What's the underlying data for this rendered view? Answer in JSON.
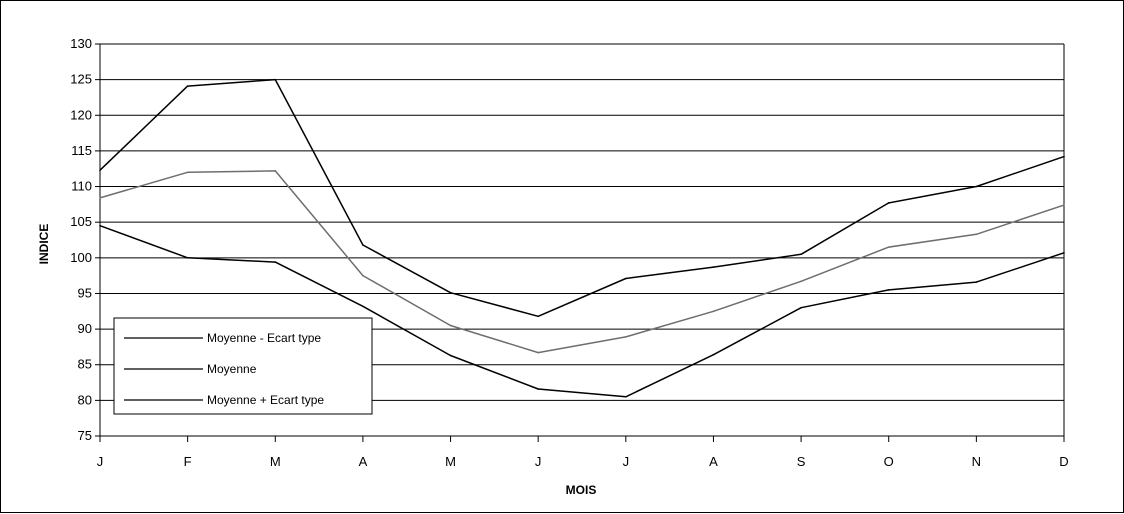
{
  "chart_data": {
    "type": "line",
    "xlabel": "MOIS",
    "ylabel": "INDICE",
    "ylim": [
      75,
      130
    ],
    "yticks": [
      75,
      80,
      85,
      90,
      95,
      100,
      105,
      110,
      115,
      120,
      125,
      130
    ],
    "categories": [
      "J",
      "F",
      "M",
      "A",
      "M",
      "J",
      "J",
      "A",
      "S",
      "O",
      "N",
      "D"
    ],
    "grid": "horizontal",
    "legend_position": "bottom-left",
    "series": [
      {
        "name": "Moyenne - Ecart type",
        "color": "#000000",
        "values": [
          104.5,
          100.0,
          99.4,
          93.2,
          86.3,
          81.6,
          80.5,
          86.4,
          93.0,
          95.5,
          96.6,
          100.7
        ]
      },
      {
        "name": "Moyenne",
        "color": "#6e6e6e",
        "values": [
          108.4,
          112.0,
          112.2,
          97.5,
          90.5,
          86.7,
          88.9,
          92.5,
          96.7,
          101.5,
          103.3,
          107.4
        ]
      },
      {
        "name": "Moyenne + Ecart type",
        "color": "#000000",
        "values": [
          112.3,
          124.1,
          125.0,
          101.8,
          95.1,
          91.8,
          97.1,
          98.7,
          100.5,
          107.7,
          110.0,
          114.2
        ]
      }
    ]
  }
}
